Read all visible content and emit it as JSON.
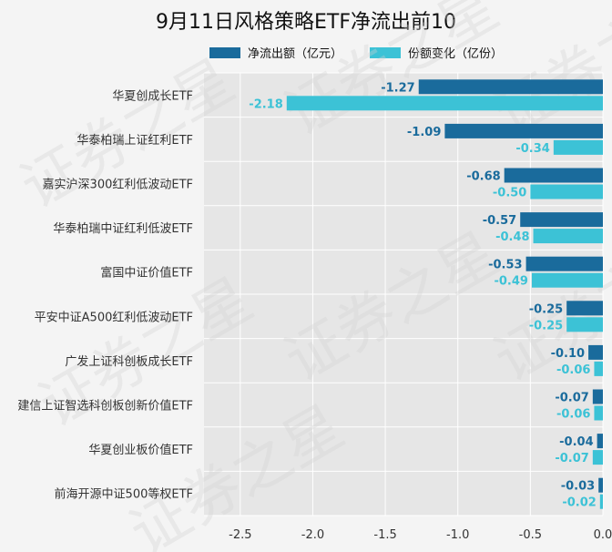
{
  "chart_data": {
    "type": "bar",
    "orientation": "horizontal",
    "title": "9月11日风格策略ETF净流出前10",
    "categories": [
      "华夏创成长ETF",
      "华泰柏瑞上证红利ETF",
      "嘉实沪深300红利低波动ETF",
      "华泰柏瑞中证红利低波ETF",
      "富国中证价值ETF",
      "平安中证A500红利低波动ETF",
      "广发上证科创板成长ETF",
      "建信上证智选科创板创新价值ETF",
      "华夏创业板价值ETF",
      "前海开源中证500等权ETF"
    ],
    "series": [
      {
        "name": "净流出额（亿元）",
        "color": "#1a6b9c",
        "values": [
          -1.27,
          -1.09,
          -0.68,
          -0.57,
          -0.53,
          -0.25,
          -0.1,
          -0.07,
          -0.04,
          -0.03
        ],
        "labels": [
          "-1.27",
          "-1.09",
          "-0.68",
          "-0.57",
          "-0.53",
          "-0.25",
          "-0.10",
          "-0.07",
          "-0.04",
          "-0.03"
        ]
      },
      {
        "name": "份额变化（亿份）",
        "color": "#3cc2d6",
        "values": [
          -2.18,
          -0.34,
          -0.5,
          -0.48,
          -0.49,
          -0.25,
          -0.06,
          -0.06,
          -0.07,
          -0.02
        ],
        "labels": [
          "-2.18",
          "-0.34",
          "-0.50",
          "-0.48",
          "-0.49",
          "-0.25",
          "-0.06",
          "-0.06",
          "-0.07",
          "-0.02"
        ]
      }
    ],
    "xlim": [
      -2.75,
      0.0
    ],
    "xticks": [
      -2.5,
      -2.0,
      -1.5,
      -1.0,
      -0.5,
      0.0
    ],
    "xtick_labels": [
      "-2.5",
      "-2.0",
      "-1.5",
      "-1.0",
      "-0.5",
      "0.0"
    ],
    "grid": true,
    "legend_position": "top"
  },
  "watermark": {
    "text": "证券之星"
  }
}
